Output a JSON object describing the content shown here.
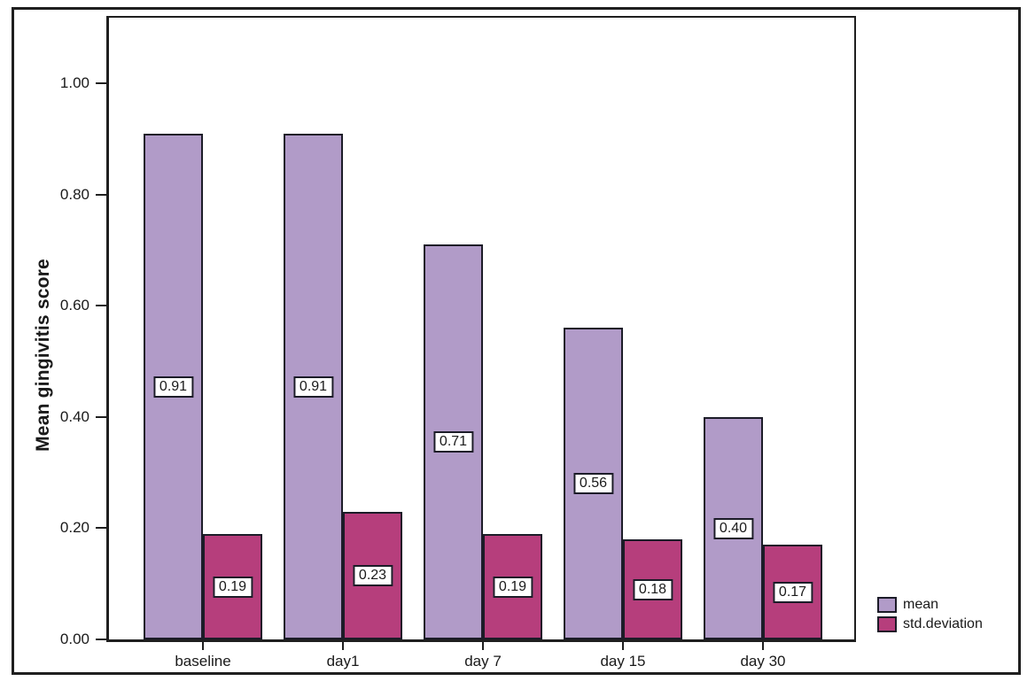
{
  "chart_data": {
    "type": "bar",
    "title": "",
    "xlabel": "",
    "ylabel": "Mean gingivitis score",
    "categories": [
      "baseline",
      "day1",
      "day 7",
      "day 15",
      "day 30"
    ],
    "series": [
      {
        "name": "mean",
        "key": "mean",
        "color": "#b19bc8",
        "values": [
          0.91,
          0.91,
          0.71,
          0.56,
          0.4
        ],
        "labels": [
          "0.91",
          "0.91",
          "0.71",
          "0.56",
          "0.40"
        ]
      },
      {
        "name": "std.deviation",
        "key": "std-deviation",
        "color": "#b63e7c",
        "values": [
          0.19,
          0.23,
          0.19,
          0.18,
          0.17
        ],
        "labels": [
          "0.19",
          "0.23",
          "0.19",
          "0.18",
          "0.17"
        ]
      }
    ],
    "y_ticks": [
      "0.00",
      "0.20",
      "0.40",
      "0.60",
      "0.80",
      "1.00"
    ],
    "ylim": [
      0,
      1.12
    ],
    "grid": false,
    "legend_position": "outside-right-bottom",
    "bar_label_style": "boxed-white-centered",
    "axis_color": "#1f1f1f",
    "background_color": "#ffffff"
  }
}
